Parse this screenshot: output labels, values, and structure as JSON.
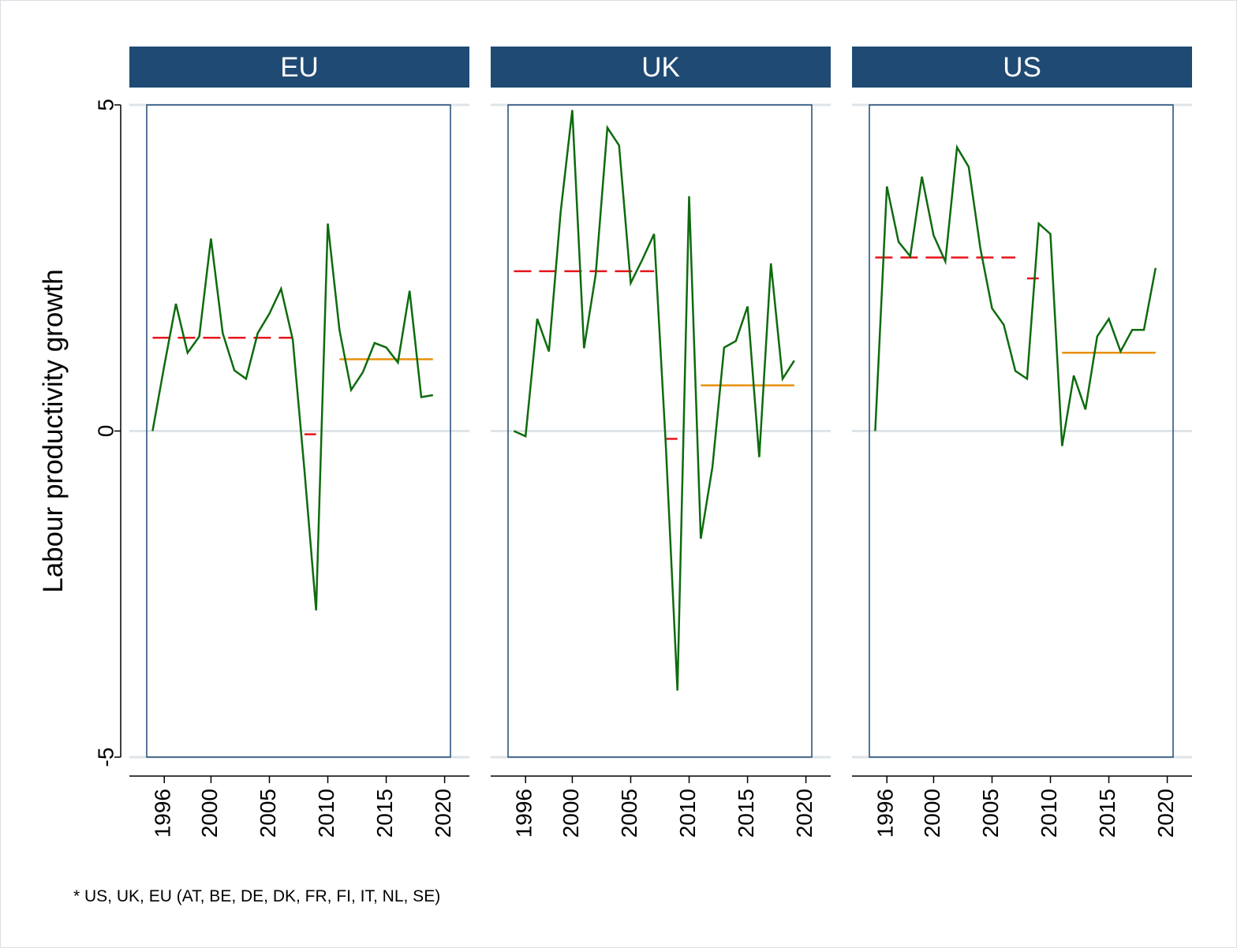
{
  "chart_data": {
    "type": "line",
    "ylabel": "Labour productivity growth",
    "ylim": [
      -5,
      5
    ],
    "yticks": [
      -5,
      0,
      5
    ],
    "xlim": [
      1994.5,
      2020.5
    ],
    "xticks": [
      1996,
      2000,
      2005,
      2010,
      2015,
      2020
    ],
    "years": [
      1995,
      1996,
      1997,
      1998,
      1999,
      2000,
      2001,
      2002,
      2003,
      2004,
      2005,
      2006,
      2007,
      2008,
      2009,
      2010,
      2011,
      2012,
      2013,
      2014,
      2015,
      2016,
      2017,
      2018,
      2019
    ],
    "colors": {
      "strip": "#1f4a73",
      "series": "#0e6b0e",
      "pre_crisis": "#e8141c",
      "crisis": "#e8141c",
      "post_crisis": "#e8900c",
      "frame": "#1f4a73",
      "grid": "#dfe4e8"
    },
    "panels": [
      {
        "name": "EU",
        "values": [
          0.0,
          1.0,
          1.95,
          1.2,
          1.45,
          2.95,
          1.5,
          0.93,
          0.8,
          1.5,
          1.8,
          2.18,
          1.4,
          -0.6,
          -2.75,
          3.18,
          1.55,
          0.63,
          0.9,
          1.35,
          1.28,
          1.05,
          2.15,
          0.52,
          0.55
        ],
        "pre_crisis_mean": 1.43,
        "pre_crisis_years": [
          1995,
          2007
        ],
        "crisis_mean": -0.05,
        "crisis_years": [
          2008,
          2009
        ],
        "post_crisis_mean": 1.1,
        "post_crisis_years": [
          2011,
          2019
        ]
      },
      {
        "name": "UK",
        "values": [
          0.0,
          -0.08,
          1.72,
          1.22,
          3.35,
          4.92,
          1.27,
          2.4,
          4.65,
          4.38,
          2.27,
          2.63,
          3.02,
          -0.2,
          -3.98,
          3.6,
          -1.65,
          -0.55,
          1.28,
          1.38,
          1.91,
          -0.4,
          2.57,
          0.8,
          1.08
        ],
        "pre_crisis_mean": 2.45,
        "pre_crisis_years": [
          1995,
          2007
        ],
        "crisis_mean": -0.12,
        "crisis_years": [
          2008,
          2009
        ],
        "post_crisis_mean": 0.7,
        "post_crisis_years": [
          2011,
          2019
        ]
      },
      {
        "name": "US",
        "values": [
          0.0,
          3.75,
          2.9,
          2.68,
          3.9,
          3.0,
          2.6,
          4.35,
          4.05,
          2.8,
          1.88,
          1.63,
          0.92,
          0.8,
          3.18,
          3.02,
          -0.23,
          0.85,
          0.33,
          1.45,
          1.72,
          1.22,
          1.55,
          1.55,
          2.5
        ],
        "pre_crisis_mean": 2.66,
        "pre_crisis_years": [
          1995,
          2007
        ],
        "crisis_mean": 2.34,
        "crisis_years": [
          2008,
          2009
        ],
        "post_crisis_mean": 1.2,
        "post_crisis_years": [
          2011,
          2019
        ]
      }
    ]
  },
  "note": "* US, UK, EU (AT, BE, DE, DK, FR, FI, IT, NL, SE)"
}
